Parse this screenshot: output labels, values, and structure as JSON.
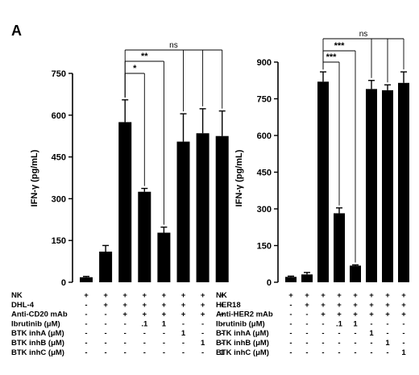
{
  "figure": {
    "panel_label": "A"
  },
  "chart_data": [
    {
      "type": "bar",
      "ylabel": "IFN-γ (pg/mL)",
      "ylim": [
        0,
        750
      ],
      "yticks": [
        "0",
        "150",
        "300",
        "450",
        "600",
        "750"
      ],
      "series": [
        {
          "values": [
            18,
            110,
            575,
            325,
            178,
            505,
            535,
            525
          ],
          "errors": [
            3,
            22,
            80,
            12,
            20,
            100,
            88,
            90
          ]
        }
      ],
      "table": [
        {
          "label": "NK",
          "cells": [
            "+",
            "+",
            "+",
            "+",
            "+",
            "+",
            "+",
            "+"
          ]
        },
        {
          "label": "DHL-4",
          "cells": [
            "-",
            "+",
            "+",
            "+",
            "+",
            "+",
            "+",
            "+"
          ]
        },
        {
          "label": "Anti-CD20 mAb",
          "cells": [
            "-",
            "-",
            "+",
            "+",
            "+",
            "+",
            "+",
            "+"
          ]
        },
        {
          "label": "Ibrutinib (μM)",
          "cells": [
            "-",
            "-",
            "-",
            ".1",
            "1",
            "-",
            "-",
            "-"
          ]
        },
        {
          "label": "BTK inhA (μM)",
          "cells": [
            "-",
            "-",
            "-",
            "-",
            "-",
            "1",
            "-",
            "-"
          ]
        },
        {
          "label": "BTK inhB (μM)",
          "cells": [
            "-",
            "-",
            "-",
            "-",
            "-",
            "-",
            "1",
            "-"
          ]
        },
        {
          "label": "BTK inhC (μM)",
          "cells": [
            "-",
            "-",
            "-",
            "-",
            "-",
            "-",
            "-",
            "1"
          ]
        }
      ],
      "significance": [
        {
          "from": 2,
          "to": 3,
          "label": "*"
        },
        {
          "from": 2,
          "to": 4,
          "label": "**"
        },
        {
          "from": 2,
          "to": [
            5,
            6,
            7
          ],
          "label": "ns"
        }
      ]
    },
    {
      "type": "bar",
      "ylabel": "IFN-γ (pg/mL)",
      "ylim": [
        0,
        900
      ],
      "yticks": [
        "0",
        "150",
        "300",
        "450",
        "600",
        "750",
        "900"
      ],
      "series": [
        {
          "values": [
            22,
            32,
            820,
            282,
            68,
            790,
            785,
            815
          ],
          "errors": [
            3,
            8,
            40,
            22,
            3,
            35,
            22,
            45
          ]
        }
      ],
      "table": [
        {
          "label": "NK",
          "cells": [
            "+",
            "+",
            "+",
            "+",
            "+",
            "+",
            "+",
            "+"
          ]
        },
        {
          "label": "HER18",
          "cells": [
            "-",
            "+",
            "+",
            "+",
            "+",
            "+",
            "+",
            "+"
          ]
        },
        {
          "label": "Anti-HER2 mAb",
          "cells": [
            "-",
            "-",
            "+",
            "+",
            "+",
            "+",
            "+",
            "+"
          ]
        },
        {
          "label": "Ibrutinib (μM)",
          "cells": [
            "-",
            "-",
            "-",
            ".1",
            "1",
            "-",
            "-",
            "-"
          ]
        },
        {
          "label": "BTK inhA (μM)",
          "cells": [
            "-",
            "-",
            "-",
            "-",
            "-",
            "1",
            "-",
            "-"
          ]
        },
        {
          "label": "BTK inhB (μM)",
          "cells": [
            "-",
            "-",
            "-",
            "-",
            "-",
            "-",
            "1",
            "-"
          ]
        },
        {
          "label": "BTK inhC (μM)",
          "cells": [
            "-",
            "-",
            "-",
            "-",
            "-",
            "-",
            "-",
            "1"
          ]
        }
      ],
      "significance": [
        {
          "from": 2,
          "to": 3,
          "label": "***"
        },
        {
          "from": 2,
          "to": 4,
          "label": "***"
        },
        {
          "from": 2,
          "to": [
            5,
            6,
            7
          ],
          "label": "ns"
        }
      ]
    }
  ]
}
